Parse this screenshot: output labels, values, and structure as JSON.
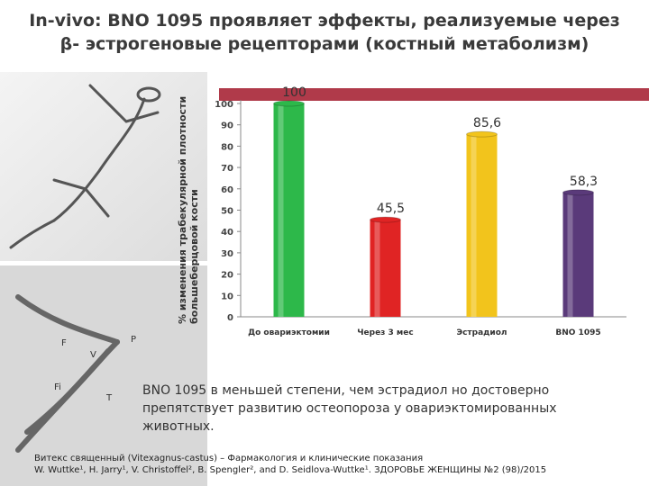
{
  "title": {
    "line1": "In-vivo: BNO 1095  проявляет эффекты, реализуемые через",
    "line2": "β- эстрогеновые рецепторами (костный метаболизм)"
  },
  "chart_data": {
    "type": "bar",
    "ylabel": "% изменения трабекулярной плотности большеберцовой кости",
    "categories": [
      "До овариэктомии",
      "Через 3 мес",
      "Эстрадиол",
      "BNO 1095"
    ],
    "values": [
      100,
      45.5,
      85.6,
      58.3
    ],
    "value_labels": [
      "100",
      "45,5",
      "85,6",
      "58,3"
    ],
    "colors": [
      "#2db84a",
      "#e02424",
      "#f2c41c",
      "#5a3a7a"
    ],
    "ylim": [
      0,
      100
    ],
    "yticks": [
      "0",
      "10",
      "20",
      "30",
      "40",
      "50",
      "60",
      "70",
      "80",
      "90",
      "100"
    ],
    "grid": false,
    "accent_bar_color": "#b03a4a"
  },
  "caption": {
    "line1": "BNO 1095 в меньшей степени, чем эстрадиол но достоверно",
    "line2": "препятствует развитию остеопороза у овариэктомированных",
    "line3": "животных."
  },
  "reference": {
    "line1": "Витекс священный (Vitexagnus-castus) – Фармакология и клинические показания",
    "line2": "W. Wuttke¹, H. Jarry¹, V. Christoffel², B. Spengler², and D. Seidlova-Wuttke¹. ЗДОРОВЬЕ ЖЕНЩИНЫ №2 (98)/2015"
  },
  "xray_labels": [
    "P",
    "V",
    "Fi",
    "T",
    "F"
  ]
}
